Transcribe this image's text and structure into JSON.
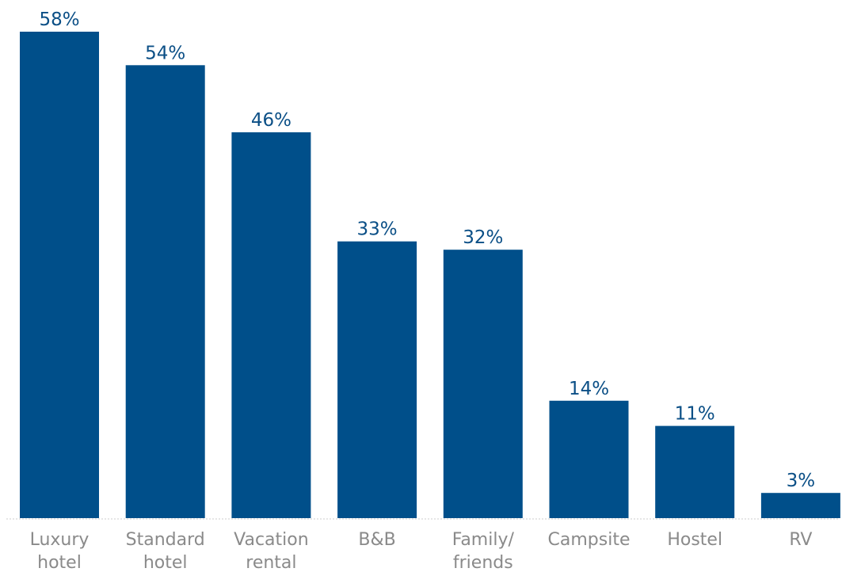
{
  "chart_data": {
    "type": "bar",
    "categories": [
      [
        "Luxury",
        "hotel"
      ],
      [
        "Standard",
        "hotel"
      ],
      [
        "Vacation",
        "rental"
      ],
      [
        "B&B"
      ],
      [
        "Family/",
        "friends"
      ],
      [
        "Campsite"
      ],
      [
        "Hostel"
      ],
      [
        "RV"
      ]
    ],
    "values": [
      58,
      54,
      46,
      33,
      32,
      14,
      11,
      3
    ],
    "value_labels": [
      "58%",
      "54%",
      "46%",
      "33%",
      "32%",
      "14%",
      "11%",
      "3%"
    ],
    "unit": "%",
    "title": "",
    "xlabel": "",
    "ylabel": "",
    "ylim": [
      0,
      58
    ],
    "grid": false,
    "bar_color": "#004f8a",
    "label_color": "#0b4f86",
    "tick_color": "#8a8a8a",
    "baseline_color": "#cccccc"
  }
}
